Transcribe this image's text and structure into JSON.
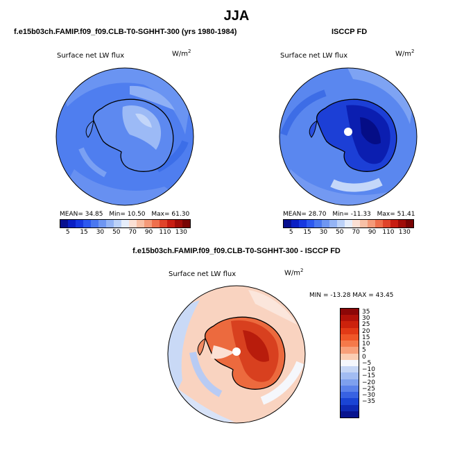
{
  "title": "JJA",
  "panels": {
    "model": {
      "case_title": "f.e15b03ch.FAMIP.f09_f09.CLB-T0-SGHHT-300 (yrs 1980-1984)",
      "variable": "Surface net LW flux",
      "units_base": "W/m",
      "units_exp": "2",
      "stats": [
        "MEAN=  34.85",
        "Min=  10.50",
        "Max=  61.30"
      ]
    },
    "obs": {
      "case_title": "ISCCP FD",
      "variable": "Surface net LW flux",
      "units_base": "W/m",
      "units_exp": "2",
      "stats": [
        "MEAN=  28.70",
        "Min=  -11.33",
        "Max=  51.41"
      ]
    },
    "diff": {
      "case_title": "f.e15b03ch.FAMIP.f09_f09.CLB-T0-SGHHT-300 - ISCCP FD",
      "variable": "Surface net LW flux",
      "units_base": "W/m",
      "units_exp": "2",
      "minmax": "MIN = -13.28  MAX =  43.45"
    }
  },
  "colorbar_abs": {
    "labels": [
      "5",
      "15",
      "30",
      "50",
      "70",
      "90",
      "110",
      "130"
    ],
    "colors": [
      "#08108f",
      "#0a1fc4",
      "#1738e0",
      "#2c58ef",
      "#4a78f0",
      "#6e96f2",
      "#94b4f5",
      "#bcd2f8",
      "#e6eefb",
      "#fbe0d4",
      "#f8c0a6",
      "#f49a79",
      "#ee6f4c",
      "#e0432a",
      "#c81d12",
      "#a00c08",
      "#780404"
    ]
  },
  "colorbar_diff": {
    "labels": [
      "35",
      "30",
      "25",
      "20",
      "15",
      "10",
      "5",
      "0",
      "−5",
      "−10",
      "−15",
      "−20",
      "−25",
      "−30",
      "−35"
    ],
    "colors": [
      "#8c0707",
      "#b11209",
      "#cc220c",
      "#e23a16",
      "#ef5728",
      "#f5794a",
      "#f8a07a",
      "#fbcdb3",
      "#f5f7fc",
      "#c6d6f5",
      "#a2bcf2",
      "#7ea0ee",
      "#5b82ea",
      "#3862e2",
      "#1a44d4",
      "#0e2ab4",
      "#08148e"
    ]
  }
}
